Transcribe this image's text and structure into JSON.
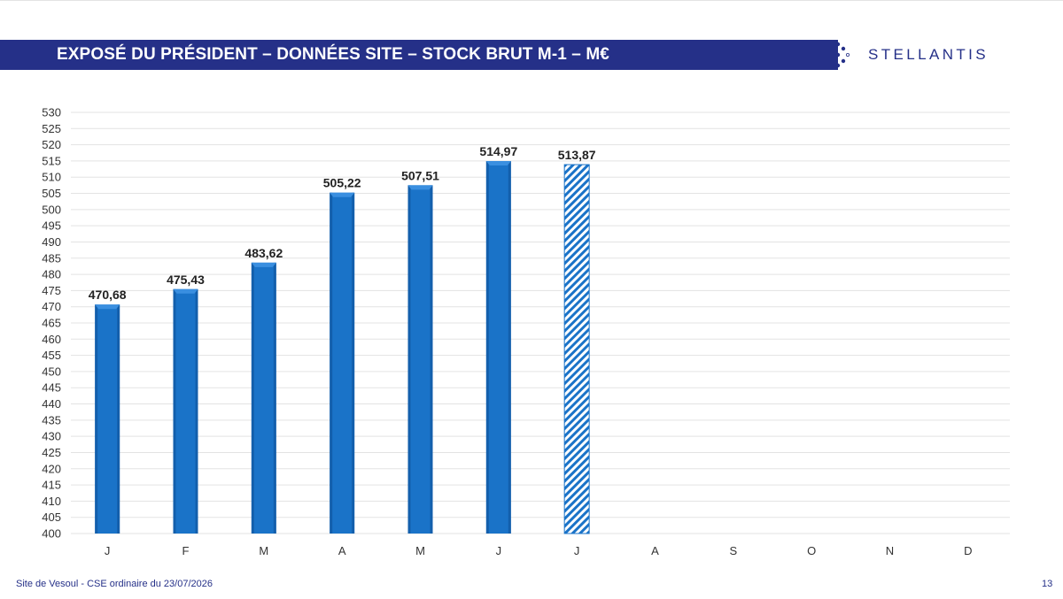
{
  "header": {
    "title": "EXPOSÉ DU PRÉSIDENT – DONNÉES SITE – STOCK BRUT M-1 – M€",
    "brand": "STELLANTIS"
  },
  "footer": {
    "site": "Site de Vesoul - CSE ordinaire du 23/07/2026",
    "page_number": "13"
  },
  "colors": {
    "title_bar": "#253088",
    "bar": "#1a73c8",
    "bar_dark": "#0f4f96",
    "gridline": "#e3e3e3",
    "axis_text": "#333333"
  },
  "chart_data": {
    "type": "bar",
    "categories": [
      "J",
      "F",
      "M",
      "A",
      "M",
      "J",
      "J",
      "A",
      "S",
      "O",
      "N",
      "D"
    ],
    "values": [
      470.68,
      475.43,
      483.62,
      505.22,
      507.51,
      514.97,
      513.87,
      null,
      null,
      null,
      null,
      null
    ],
    "value_labels": [
      "470,68",
      "475,43",
      "483,62",
      "505,22",
      "507,51",
      "514,97",
      "513,87",
      "",
      "",
      "",
      "",
      ""
    ],
    "hatched": [
      false,
      false,
      false,
      false,
      false,
      false,
      true,
      false,
      false,
      false,
      false,
      false
    ],
    "ylim": [
      400,
      530
    ],
    "ytick_step": 5,
    "grid": true,
    "legend": "none"
  }
}
